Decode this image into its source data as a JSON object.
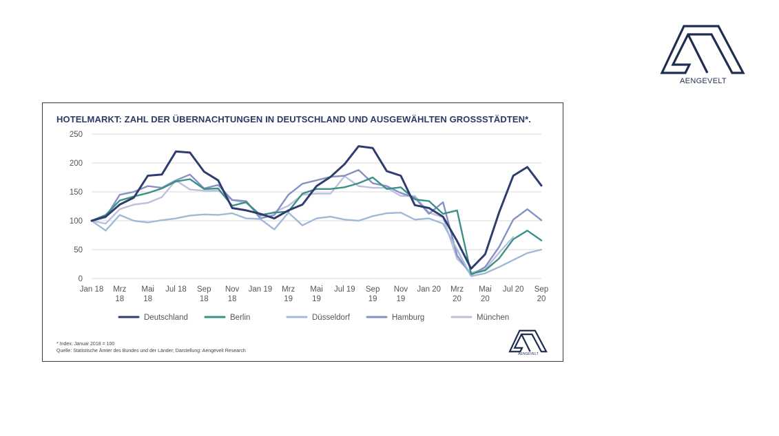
{
  "logo": {
    "name": "AENGEVELT",
    "color": "#1f2d4f"
  },
  "chart_data": {
    "type": "line",
    "title": "HOTELMARKT: ZAHL DER ÜBERNACHTUNGEN IN DEUTSCHLAND UND AUSGEWÄHLTEN GROSSSTÄDTEN*.",
    "xlabel": "",
    "ylabel": "",
    "ylim": [
      0,
      250
    ],
    "yticks": [
      0,
      50,
      100,
      150,
      200,
      250
    ],
    "grid": true,
    "legend_position": "bottom",
    "months": [
      "2018-01",
      "2018-02",
      "2018-03",
      "2018-04",
      "2018-05",
      "2018-06",
      "2018-07",
      "2018-08",
      "2018-09",
      "2018-10",
      "2018-11",
      "2018-12",
      "2019-01",
      "2019-02",
      "2019-03",
      "2019-04",
      "2019-05",
      "2019-06",
      "2019-07",
      "2019-08",
      "2019-09",
      "2019-10",
      "2019-11",
      "2019-12",
      "2020-01",
      "2020-02",
      "2020-03",
      "2020-04",
      "2020-05",
      "2020-06",
      "2020-07",
      "2020-08",
      "2020-09"
    ],
    "tick_labels": [
      {
        "month": "2018-01",
        "lines": [
          "Jan 18"
        ]
      },
      {
        "month": "2018-03",
        "lines": [
          "Mrz",
          "18"
        ]
      },
      {
        "month": "2018-05",
        "lines": [
          "Mai",
          "18"
        ]
      },
      {
        "month": "2018-07",
        "lines": [
          "Jul 18"
        ]
      },
      {
        "month": "2018-09",
        "lines": [
          "Sep",
          "18"
        ]
      },
      {
        "month": "2018-11",
        "lines": [
          "Nov",
          "18"
        ]
      },
      {
        "month": "2019-01",
        "lines": [
          "Jan 19"
        ]
      },
      {
        "month": "2019-03",
        "lines": [
          "Mrz",
          "19"
        ]
      },
      {
        "month": "2019-05",
        "lines": [
          "Mai",
          "19"
        ]
      },
      {
        "month": "2019-07",
        "lines": [
          "Jul 19"
        ]
      },
      {
        "month": "2019-09",
        "lines": [
          "Sep",
          "19"
        ]
      },
      {
        "month": "2019-11",
        "lines": [
          "Nov",
          "19"
        ]
      },
      {
        "month": "2020-01",
        "lines": [
          "Jan 20"
        ]
      },
      {
        "month": "2020-03",
        "lines": [
          "Mrz",
          "20"
        ]
      },
      {
        "month": "2020-05",
        "lines": [
          "Mai",
          "20"
        ]
      },
      {
        "month": "2020-07",
        "lines": [
          "Jul 20"
        ]
      },
      {
        "month": "2020-09",
        "lines": [
          "Sep",
          "20"
        ]
      }
    ],
    "series": [
      {
        "name": "Deutschland",
        "color": "#2e3d6e",
        "width": 3,
        "values": [
          100,
          107,
          128,
          140,
          178,
          180,
          220,
          218,
          185,
          170,
          122,
          118,
          112,
          104,
          118,
          128,
          160,
          176,
          198,
          229,
          226,
          186,
          178,
          127,
          122,
          107,
          65,
          17,
          42,
          115,
          178,
          193,
          161
        ]
      },
      {
        "name": "Berlin",
        "color": "#3a8f86",
        "width": 2.4,
        "values": [
          100,
          110,
          135,
          142,
          148,
          156,
          168,
          172,
          155,
          156,
          126,
          132,
          110,
          114,
          116,
          147,
          155,
          155,
          158,
          165,
          175,
          155,
          158,
          137,
          134,
          112,
          118,
          8,
          14,
          35,
          68,
          83,
          66
        ]
      },
      {
        "name": "Düsseldorf",
        "color": "#9fb9d8",
        "width": 2.4,
        "values": [
          100,
          83,
          110,
          100,
          97,
          101,
          104,
          109,
          111,
          110,
          113,
          104,
          103,
          85,
          114,
          92,
          104,
          107,
          102,
          100,
          108,
          113,
          114,
          102,
          104,
          95,
          50,
          4,
          9,
          20,
          32,
          44,
          50
        ]
      },
      {
        "name": "Hamburg",
        "color": "#8590c4",
        "width": 2.4,
        "values": [
          100,
          106,
          145,
          150,
          160,
          157,
          170,
          180,
          156,
          162,
          136,
          134,
          104,
          110,
          145,
          164,
          170,
          176,
          178,
          188,
          165,
          160,
          148,
          140,
          112,
          132,
          40,
          6,
          20,
          55,
          102,
          120,
          101
        ]
      },
      {
        "name": "München",
        "color": "#bcc0dc",
        "width": 2.4,
        "values": [
          100,
          95,
          120,
          128,
          131,
          141,
          170,
          154,
          152,
          152,
          136,
          131,
          108,
          115,
          126,
          145,
          147,
          147,
          177,
          160,
          157,
          157,
          143,
          143,
          114,
          106,
          34,
          10,
          16,
          45,
          72,
          null,
          null
        ]
      }
    ]
  },
  "footnotes": [
    "* Index: Januar 2018 = 100",
    "Quelle: Statistische Ämter des Bundes und der Länder; Darstellung: Aengevelt Research"
  ]
}
